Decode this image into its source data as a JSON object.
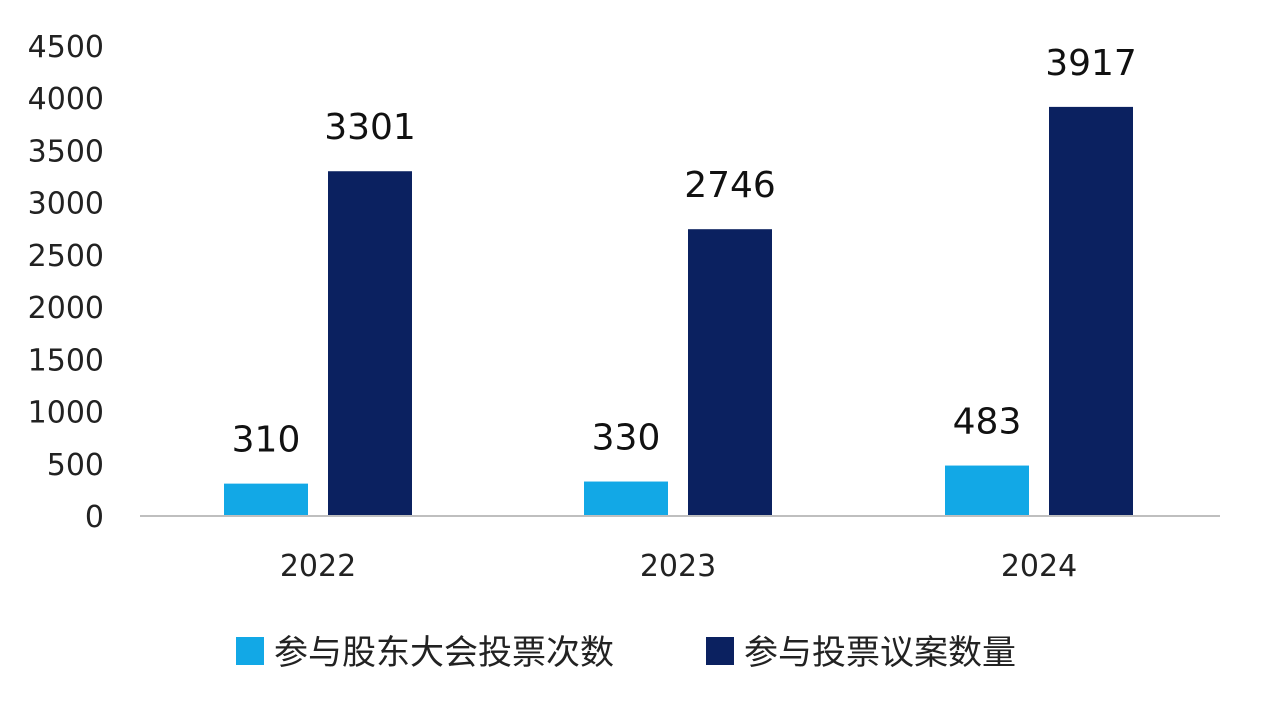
{
  "chart_data": {
    "type": "bar",
    "categories": [
      "2022",
      "2023",
      "2024"
    ],
    "series": [
      {
        "name": "参与股东大会投票次数",
        "values": [
          310,
          330,
          483
        ],
        "color": "#12a8e6"
      },
      {
        "name": "参与投票议案数量",
        "values": [
          3301,
          2746,
          3917
        ],
        "color": "#0b2160"
      }
    ],
    "ylim": [
      0,
      4500
    ],
    "yticks": [
      "0",
      "500",
      "1000",
      "1500",
      "2000",
      "2500",
      "3000",
      "3500",
      "4000",
      "4500"
    ],
    "data_labels": true,
    "grid": false,
    "legend_position": "bottom"
  }
}
